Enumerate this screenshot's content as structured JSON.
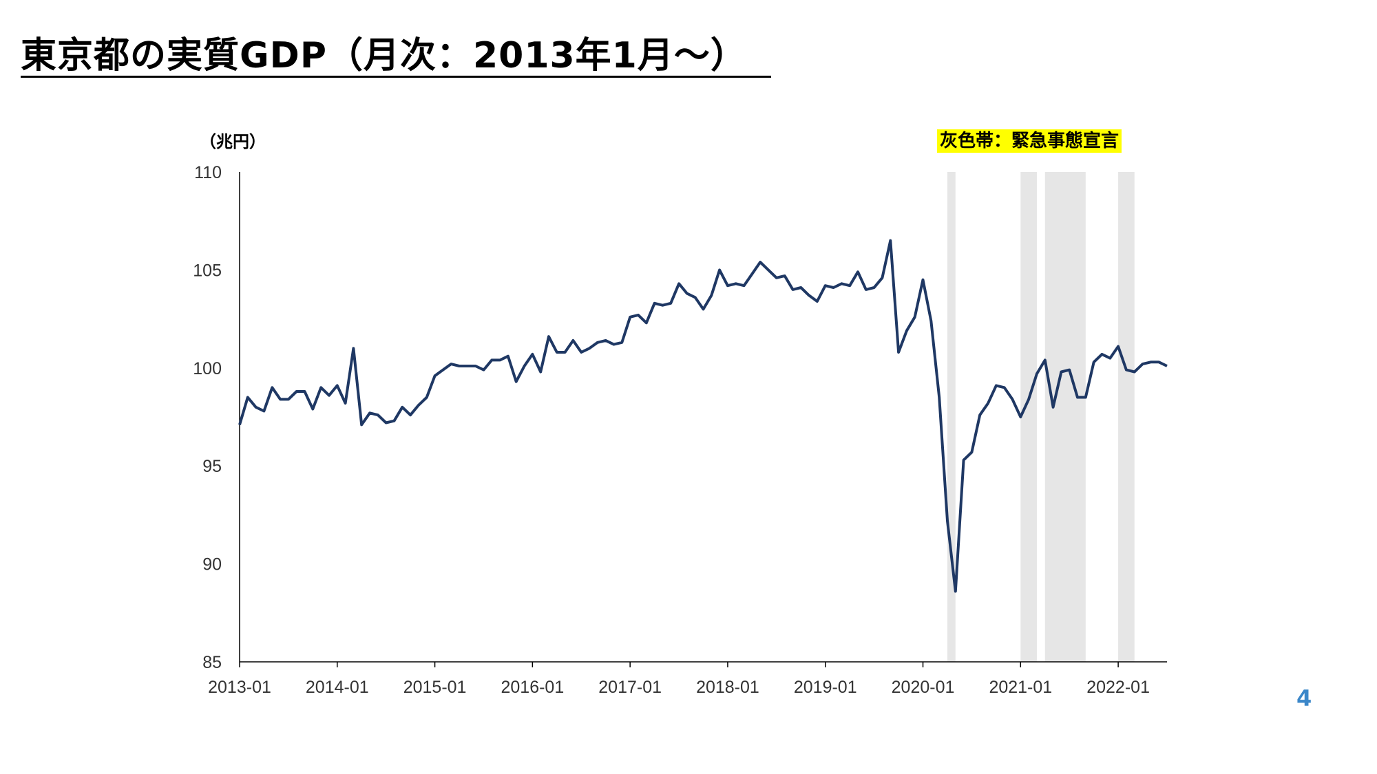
{
  "slide": {
    "title": "東京都の実質GDP（月次：2013年1月～）",
    "unit_label": "（兆円）",
    "legend_note": "灰色帯：緊急事態宣言",
    "page_number": "4"
  },
  "chart_data": {
    "type": "line",
    "title": "",
    "xlabel": "",
    "ylabel": "（兆円）",
    "ylim": [
      85,
      110
    ],
    "yticks": [
      85,
      90,
      95,
      100,
      105,
      110
    ],
    "xticks": [
      "2013-01",
      "2014-01",
      "2015-01",
      "2016-01",
      "2017-01",
      "2018-01",
      "2019-01",
      "2020-01",
      "2021-01",
      "2022-01"
    ],
    "x_start": "2013-01",
    "x_end": "2022-07",
    "grid": false,
    "line_color": "#1f3864",
    "band_color": "#e6e6e6",
    "shaded_periods": [
      {
        "start": "2020-04",
        "end": "2020-05"
      },
      {
        "start": "2021-01",
        "end": "2021-03"
      },
      {
        "start": "2021-04",
        "end": "2021-09"
      },
      {
        "start": "2022-01",
        "end": "2022-03"
      }
    ],
    "series": [
      {
        "x": [
          "2013-01",
          "2013-02",
          "2013-03",
          "2013-04",
          "2013-05",
          "2013-06",
          "2013-07",
          "2013-08",
          "2013-09",
          "2013-10",
          "2013-11",
          "2013-12",
          "2014-01",
          "2014-02",
          "2014-03",
          "2014-04",
          "2014-05",
          "2014-06",
          "2014-07",
          "2014-08",
          "2014-09",
          "2014-10",
          "2014-11",
          "2014-12",
          "2015-01",
          "2015-02",
          "2015-03",
          "2015-04",
          "2015-05",
          "2015-06",
          "2015-07",
          "2015-08",
          "2015-09",
          "2015-10",
          "2015-11",
          "2015-12",
          "2016-01",
          "2016-02",
          "2016-03",
          "2016-04",
          "2016-05",
          "2016-06",
          "2016-07",
          "2016-08",
          "2016-09",
          "2016-10",
          "2016-11",
          "2016-12",
          "2017-01",
          "2017-02",
          "2017-03",
          "2017-04",
          "2017-05",
          "2017-06",
          "2017-07",
          "2017-08",
          "2017-09",
          "2017-10",
          "2017-11",
          "2017-12",
          "2018-01",
          "2018-02",
          "2018-03",
          "2018-04",
          "2018-05",
          "2018-06",
          "2018-07",
          "2018-08",
          "2018-09",
          "2018-10",
          "2018-11",
          "2018-12",
          "2019-01",
          "2019-02",
          "2019-03",
          "2019-04",
          "2019-05",
          "2019-06",
          "2019-07",
          "2019-08",
          "2019-09",
          "2019-10",
          "2019-11",
          "2019-12",
          "2020-01",
          "2020-02",
          "2020-03",
          "2020-04",
          "2020-05",
          "2020-06",
          "2020-07",
          "2020-08",
          "2020-09",
          "2020-10",
          "2020-11",
          "2020-12",
          "2021-01",
          "2021-02",
          "2021-03",
          "2021-04",
          "2021-05",
          "2021-06",
          "2021-07",
          "2021-08",
          "2021-09",
          "2021-10",
          "2021-11",
          "2021-12",
          "2022-01",
          "2022-02",
          "2022-03",
          "2022-04",
          "2022-05",
          "2022-06",
          "2022-07"
        ],
        "values": [
          97.1,
          98.5,
          98.0,
          97.8,
          99.0,
          98.4,
          98.4,
          98.8,
          98.8,
          97.9,
          99.0,
          98.6,
          99.1,
          98.2,
          101.0,
          97.1,
          97.7,
          97.6,
          97.2,
          97.3,
          98.0,
          97.6,
          98.1,
          98.5,
          99.6,
          99.9,
          100.2,
          100.1,
          100.1,
          100.1,
          99.9,
          100.4,
          100.4,
          100.6,
          99.3,
          100.1,
          100.7,
          99.8,
          101.6,
          100.8,
          100.8,
          101.4,
          100.8,
          101.0,
          101.3,
          101.4,
          101.2,
          101.3,
          102.6,
          102.7,
          102.3,
          103.3,
          103.2,
          103.3,
          104.3,
          103.8,
          103.6,
          103.0,
          103.7,
          105.0,
          104.2,
          104.3,
          104.2,
          104.8,
          105.4,
          105.0,
          104.6,
          104.7,
          104.0,
          104.1,
          103.7,
          103.4,
          104.2,
          104.1,
          104.3,
          104.2,
          104.9,
          104.0,
          104.1,
          104.6,
          106.5,
          100.8,
          101.9,
          102.6,
          104.5,
          102.4,
          98.5,
          92.2,
          88.6,
          95.3,
          95.7,
          97.6,
          98.2,
          99.1,
          99.0,
          98.4,
          97.5,
          98.4,
          99.7,
          100.4,
          98.0,
          99.8,
          99.9,
          98.5,
          98.5,
          100.3,
          100.7,
          100.5,
          101.1,
          99.9,
          99.8,
          100.2,
          100.3,
          100.3,
          100.1
        ]
      }
    ]
  }
}
